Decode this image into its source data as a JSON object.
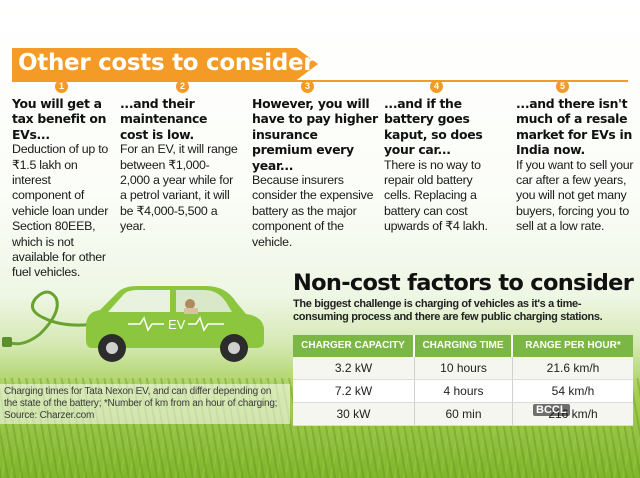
{
  "header": {
    "title": "Other costs to consider"
  },
  "colors": {
    "accent_orange": "#f39a27",
    "table_green": "#7ab744",
    "car_green": "#8cc63f"
  },
  "points": [
    {
      "number": "1",
      "heading": "You will get a tax benefit on EVs...",
      "body": "Deduction of up to ₹1.5 lakh on interest component of vehicle loan under Section 80EEB, which is not available for other fuel vehicles."
    },
    {
      "number": "2",
      "heading": "...and their maintenance cost is low.",
      "body": "For an EV, it will range between ₹1,000-2,000 a year while for a petrol variant, it will be ₹4,000-5,500 a year."
    },
    {
      "number": "3",
      "heading": "However, you will have to pay higher insurance premium every year...",
      "body": "Because insurers consider the expensive battery as the major component of the vehicle."
    },
    {
      "number": "4",
      "heading": "...and if the battery goes kaput, so does your car...",
      "body": "There is no way to repair old battery cells. Replacing a battery can cost upwards of ₹4 lakh."
    },
    {
      "number": "5",
      "heading": "...and there isn't much of a resale market for EVs in India now.",
      "body": "If you want to sell your car after a few years, you will not get many buyers, forcing you to sell at a low rate."
    }
  ],
  "noncost": {
    "title": "Non-cost factors to consider",
    "subtitle": "The biggest challenge is charging of vehicles as it's a time-consuming process and there are few public charging stations.",
    "headers": [
      "CHARGER CAPACITY",
      "CHARGING TIME",
      "RANGE PER HOUR*"
    ],
    "rows": [
      [
        "3.2 kW",
        "10 hours",
        "21.6 km/h"
      ],
      [
        "7.2 kW",
        "4 hours",
        "54 km/h"
      ],
      [
        "30 kW",
        "60 min",
        "216 km/h"
      ]
    ]
  },
  "car": {
    "label": "EV",
    "icon": "electric-car-illustration"
  },
  "footnote": "Charging times for Tata Nexon EV, and can differ depending on the state of the battery; *Number of km from an hour of charging; Source: Charzer.com",
  "watermark": "BCCL"
}
